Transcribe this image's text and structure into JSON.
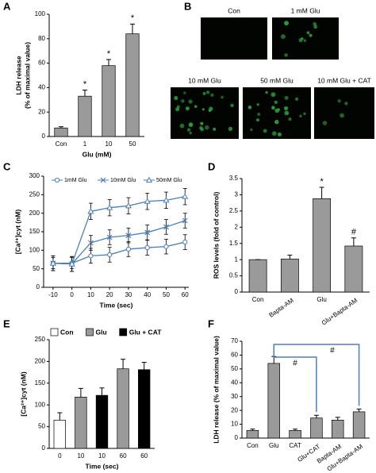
{
  "chart_data": [
    {
      "type": "bar",
      "panel": "A",
      "ylabel": [
        "LDH release",
        "(% of maximal value)"
      ],
      "xlabel": "Glu (mM)",
      "categories": [
        "Con",
        "1",
        "10",
        "50"
      ],
      "values": [
        7,
        33,
        58,
        84
      ],
      "errors": [
        1,
        5,
        5,
        8
      ],
      "bar_labels": [
        null,
        "*",
        "*",
        "*"
      ],
      "color": "#9a9a9a",
      "ylim": [
        0,
        100
      ],
      "yticks": [
        0,
        20,
        40,
        60,
        80,
        100
      ]
    },
    {
      "type": "image-grid",
      "panel": "B",
      "images": [
        "Con",
        "1 mM Glu",
        "10 mM Glu",
        "50 mM Glu",
        "10 mM Glu + CAT"
      ]
    },
    {
      "type": "line",
      "panel": "C",
      "ylabel": "[Ca²⁺]cyt (nM)",
      "xlabel": "Time (sec)",
      "x": [
        -10,
        0,
        10,
        20,
        30,
        40,
        50,
        60
      ],
      "xlim": [
        -15,
        62
      ],
      "xticks": [
        -10,
        0,
        10,
        20,
        30,
        40,
        50,
        60
      ],
      "ylim": [
        0,
        300
      ],
      "yticks": [
        0,
        50,
        100,
        150,
        200,
        250,
        300
      ],
      "series": [
        {
          "name": "1mM Glu",
          "color": "#4a7ebb",
          "marker": "circle",
          "values": [
            65,
            65,
            85,
            88,
            103,
            107,
            110,
            122
          ],
          "errors": [
            15,
            15,
            20,
            20,
            20,
            20,
            20,
            20
          ]
        },
        {
          "name": "10mM Glu",
          "color": "#4a7ebb",
          "marker": "x",
          "values": [
            65,
            63,
            120,
            135,
            140,
            148,
            163,
            180
          ],
          "errors": [
            20,
            20,
            20,
            20,
            20,
            20,
            20,
            20
          ]
        },
        {
          "name": "50mM Glu",
          "color": "#4a7ebb",
          "marker": "triangle",
          "values": [
            65,
            63,
            205,
            215,
            220,
            232,
            235,
            245
          ],
          "errors": [
            20,
            20,
            22,
            22,
            22,
            22,
            22,
            22
          ]
        }
      ]
    },
    {
      "type": "bar",
      "panel": "D",
      "ylabel": "ROS levels (fold of control)",
      "categories": [
        "Con",
        "Bapta-AM",
        "Glu",
        "Glu+Bapta-AM"
      ],
      "values": [
        1,
        1.02,
        2.88,
        1.42
      ],
      "errors": [
        0,
        0.12,
        0.35,
        0.25
      ],
      "bar_labels": [
        null,
        null,
        "*",
        "#"
      ],
      "color": "#9a9a9a",
      "ylim": [
        0,
        3.5
      ],
      "yticks": [
        0,
        0.5,
        1,
        1.5,
        2,
        2.5,
        3,
        3.5
      ]
    },
    {
      "type": "bar",
      "panel": "E",
      "ylabel": "[Ca²⁺]cyt (nM)",
      "xlabel": "Time (sec)",
      "categories": [
        "0",
        "10",
        "10",
        "60",
        "60"
      ],
      "series": [
        {
          "name": "Con",
          "color": "#ffffff",
          "values": [
            65,
            null,
            null,
            null,
            null
          ],
          "errors": [
            17,
            null,
            null,
            null,
            null
          ]
        },
        {
          "name": "Glu",
          "color": "#9a9a9a",
          "values": [
            null,
            118,
            null,
            183,
            null
          ],
          "errors": [
            null,
            20,
            null,
            22,
            null
          ]
        },
        {
          "name": "Glu + CAT",
          "color": "#000000",
          "values": [
            null,
            null,
            122,
            null,
            181
          ],
          "errors": [
            null,
            null,
            17,
            null,
            17
          ]
        }
      ],
      "ylim": [
        0,
        250
      ],
      "yticks": [
        0,
        50,
        100,
        150,
        200,
        250
      ]
    },
    {
      "type": "bar",
      "panel": "F",
      "ylabel": "LDH release (% of maximal value)",
      "categories": [
        "Con",
        "Glu",
        "CAT",
        "Glu+CAT",
        "Bapta-AM",
        "Glu+Bapta-AM"
      ],
      "values": [
        5.5,
        54,
        5.5,
        14.5,
        13,
        19
      ],
      "errors": [
        1,
        5,
        1,
        2,
        2,
        2
      ],
      "color": "#9a9a9a",
      "bracket_labels": [
        "#",
        "#"
      ],
      "ylim": [
        0,
        70
      ],
      "yticks": [
        0,
        10,
        20,
        30,
        40,
        50,
        60,
        70
      ]
    }
  ]
}
